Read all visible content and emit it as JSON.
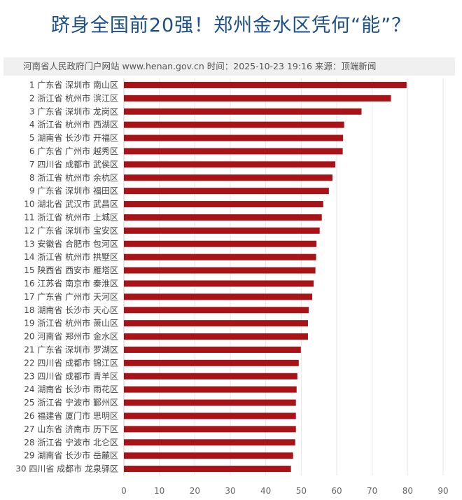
{
  "title": "跻身全国前20强！郑州金水区凭何“能”？",
  "source_line": "河南省人民政府门户网站 www.henan.gov.cn   时间：2025-10-23 19:16   来源：顶端新闻",
  "chart_data": {
    "type": "bar",
    "orientation": "horizontal",
    "categories": [
      "1 广东省 深圳市 南山区",
      "2 浙江省 杭州市 滨江区",
      "3 广东省 深圳市 龙岗区",
      "4 浙江省 杭州市 西湖区",
      "5 湖南省 长沙市 开福区",
      "6 广东省 广州市 越秀区",
      "7 四川省 成都市 武侯区",
      "8 浙江省 杭州市 余杭区",
      "9 广东省 深圳市 福田区",
      "10 湖北省 武汉市 武昌区",
      "11 浙江省 杭州市 上城区",
      "12 广东省 深圳市 宝安区",
      "13 安徽省 合肥市 包河区",
      "14 浙江省 杭州市 拱墅区",
      "15 陕西省 西安市 雁塔区",
      "16 江苏省 南京市 秦淮区",
      "17 广东省 广州市 天河区",
      "18 湖南省 长沙市 天心区",
      "19 浙江省 杭州市 萧山区",
      "20 河南省 郑州市 金水区",
      "21 广东省 深圳市 罗湖区",
      "22 四川省 成都市 锦江区",
      "23 四川省 成都市 青羊区",
      "24 湖南省 长沙市 雨花区",
      "25 浙江省 宁波市 鄞州区",
      "26 福建省 厦门市 思明区",
      "27 山东省 济南市 历下区",
      "28 浙江省 宁波市 北仑区",
      "29 湖南省 长沙市 岳麓区",
      "30 四川省 成都市 龙泉驿区"
    ],
    "values": [
      79.7,
      75.3,
      67.0,
      62.1,
      61.8,
      61.7,
      59.6,
      58.8,
      57.8,
      56.2,
      55.8,
      55.2,
      54.3,
      54.2,
      54.0,
      53.5,
      53.1,
      52.1,
      51.9,
      51.9,
      49.9,
      49.3,
      48.9,
      48.7,
      48.5,
      48.5,
      48.5,
      48.3,
      47.7,
      47.1
    ],
    "xlim": [
      0,
      90
    ],
    "xticks": [
      "0",
      "10",
      "20",
      "30",
      "40",
      "50",
      "60",
      "70",
      "80",
      "90"
    ],
    "grid": true,
    "bar_color": "#a81318",
    "title_color": "#1b4f8c"
  }
}
